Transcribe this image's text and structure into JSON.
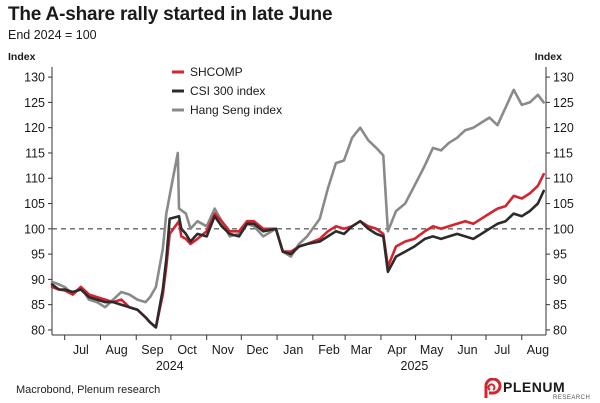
{
  "header": {
    "title": "The A-share rally started in late June",
    "subtitle": "End 2024 = 100"
  },
  "footer": {
    "source": "Macrobond, Plenum research",
    "logo_text": "PLENUM",
    "logo_sub": "RESEARCH"
  },
  "colors": {
    "SHCOMP": "#d7232e",
    "CSI 300 index": "#2b2b2b",
    "Hang Seng index": "#8a8a8a",
    "reference_line": "#666666"
  },
  "chart_data": {
    "type": "line",
    "title": "The A-share rally started in late June",
    "subtitle": "End 2024 = 100",
    "ylabel_left": "Index",
    "ylabel_right": "Index",
    "ylim": [
      79,
      132
    ],
    "yticks": [
      80,
      85,
      90,
      95,
      100,
      105,
      110,
      115,
      120,
      125,
      130
    ],
    "xlim": [
      "2024-06-20",
      "2025-08-22"
    ],
    "xticks": [
      {
        "label": "Jul",
        "date": "2024-07-15"
      },
      {
        "label": "Aug",
        "date": "2024-08-15"
      },
      {
        "label": "Sep",
        "date": "2024-09-15"
      },
      {
        "label": "Oct",
        "date": "2024-10-15"
      },
      {
        "label": "Nov",
        "date": "2024-11-15"
      },
      {
        "label": "Dec",
        "date": "2024-12-15"
      },
      {
        "label": "Jan",
        "date": "2025-01-15"
      },
      {
        "label": "Feb",
        "date": "2025-02-15"
      },
      {
        "label": "Mar",
        "date": "2025-03-15"
      },
      {
        "label": "Apr",
        "date": "2025-04-15"
      },
      {
        "label": "May",
        "date": "2025-05-15"
      },
      {
        "label": "Jun",
        "date": "2025-06-15"
      },
      {
        "label": "Jul",
        "date": "2025-07-15"
      },
      {
        "label": "Aug",
        "date": "2025-08-15"
      }
    ],
    "year_labels": [
      {
        "label": "2024",
        "date": "2024-09-30"
      },
      {
        "label": "2025",
        "date": "2025-04-30"
      }
    ],
    "reference_line": 100,
    "grid": false,
    "legend": "top-left",
    "series": [
      {
        "name": "SHCOMP",
        "x": [
          "2024-06-20",
          "2024-06-26",
          "2024-07-01",
          "2024-07-08",
          "2024-07-15",
          "2024-07-22",
          "2024-07-29",
          "2024-08-05",
          "2024-08-12",
          "2024-08-19",
          "2024-08-26",
          "2024-09-02",
          "2024-09-09",
          "2024-09-13",
          "2024-09-18",
          "2024-09-24",
          "2024-09-27",
          "2024-09-30",
          "2024-10-08",
          "2024-10-10",
          "2024-10-14",
          "2024-10-18",
          "2024-10-24",
          "2024-11-01",
          "2024-11-08",
          "2024-11-14",
          "2024-11-21",
          "2024-11-29",
          "2024-12-06",
          "2024-12-12",
          "2024-12-20",
          "2024-12-31",
          "2025-01-06",
          "2025-01-13",
          "2025-01-20",
          "2025-01-27",
          "2025-02-07",
          "2025-02-14",
          "2025-02-21",
          "2025-02-28",
          "2025-03-07",
          "2025-03-14",
          "2025-03-21",
          "2025-03-28",
          "2025-04-03",
          "2025-04-07",
          "2025-04-14",
          "2025-04-22",
          "2025-04-30",
          "2025-05-09",
          "2025-05-16",
          "2025-05-23",
          "2025-05-30",
          "2025-06-06",
          "2025-06-13",
          "2025-06-20",
          "2025-06-27",
          "2025-07-04",
          "2025-07-11",
          "2025-07-18",
          "2025-07-25",
          "2025-08-01",
          "2025-08-08",
          "2025-08-15",
          "2025-08-20"
        ],
        "y": [
          88.5,
          88.0,
          87.8,
          87.0,
          88.5,
          87.0,
          86.5,
          86.0,
          85.5,
          86.0,
          84.5,
          84.0,
          82.5,
          81.5,
          80.5,
          87.0,
          92.5,
          99.0,
          101.5,
          98.5,
          98.0,
          97.0,
          98.0,
          99.5,
          103.0,
          101.5,
          99.5,
          99.5,
          101.5,
          101.5,
          100.0,
          100.0,
          95.5,
          95.5,
          96.5,
          97.0,
          98.0,
          99.5,
          100.5,
          100.0,
          100.5,
          101.5,
          100.5,
          100.0,
          99.0,
          92.5,
          96.5,
          97.5,
          98.0,
          99.5,
          100.5,
          100.0,
          100.5,
          101.0,
          101.5,
          101.0,
          102.0,
          103.0,
          104.0,
          104.5,
          106.5,
          106.0,
          107.0,
          108.5,
          110.8
        ]
      },
      {
        "name": "CSI 300 index",
        "x": [
          "2024-06-20",
          "2024-06-26",
          "2024-07-01",
          "2024-07-08",
          "2024-07-15",
          "2024-07-22",
          "2024-07-29",
          "2024-08-05",
          "2024-08-12",
          "2024-08-19",
          "2024-08-26",
          "2024-09-02",
          "2024-09-09",
          "2024-09-13",
          "2024-09-18",
          "2024-09-24",
          "2024-09-27",
          "2024-09-30",
          "2024-10-08",
          "2024-10-10",
          "2024-10-14",
          "2024-10-18",
          "2024-10-24",
          "2024-11-01",
          "2024-11-08",
          "2024-11-14",
          "2024-11-21",
          "2024-11-29",
          "2024-12-06",
          "2024-12-12",
          "2024-12-20",
          "2024-12-31",
          "2025-01-06",
          "2025-01-13",
          "2025-01-20",
          "2025-01-27",
          "2025-02-07",
          "2025-02-14",
          "2025-02-21",
          "2025-02-28",
          "2025-03-07",
          "2025-03-14",
          "2025-03-21",
          "2025-03-28",
          "2025-04-03",
          "2025-04-07",
          "2025-04-14",
          "2025-04-22",
          "2025-04-30",
          "2025-05-09",
          "2025-05-16",
          "2025-05-23",
          "2025-05-30",
          "2025-06-06",
          "2025-06-13",
          "2025-06-20",
          "2025-06-27",
          "2025-07-04",
          "2025-07-11",
          "2025-07-18",
          "2025-07-25",
          "2025-08-01",
          "2025-08-08",
          "2025-08-15",
          "2025-08-20"
        ],
        "y": [
          89.0,
          88.0,
          88.0,
          87.5,
          88.0,
          86.5,
          86.0,
          85.5,
          85.5,
          85.0,
          84.5,
          84.0,
          82.5,
          81.5,
          80.5,
          88.0,
          94.0,
          102.0,
          102.5,
          100.0,
          99.0,
          97.5,
          99.0,
          98.5,
          102.5,
          100.5,
          99.0,
          98.5,
          101.0,
          101.0,
          99.5,
          100.0,
          95.5,
          95.0,
          96.5,
          97.0,
          97.5,
          98.5,
          99.5,
          99.0,
          100.5,
          101.5,
          100.0,
          99.0,
          98.5,
          91.5,
          94.5,
          95.5,
          96.5,
          98.0,
          98.5,
          98.0,
          98.5,
          99.0,
          98.5,
          98.0,
          99.0,
          100.0,
          101.0,
          101.5,
          103.0,
          102.5,
          103.5,
          105.0,
          107.5
        ]
      },
      {
        "name": "Hang Seng index",
        "x": [
          "2024-06-20",
          "2024-06-26",
          "2024-07-01",
          "2024-07-08",
          "2024-07-15",
          "2024-07-22",
          "2024-07-29",
          "2024-08-05",
          "2024-08-12",
          "2024-08-19",
          "2024-08-26",
          "2024-09-02",
          "2024-09-09",
          "2024-09-13",
          "2024-09-18",
          "2024-09-24",
          "2024-09-27",
          "2024-10-02",
          "2024-10-07",
          "2024-10-08",
          "2024-10-14",
          "2024-10-18",
          "2024-10-24",
          "2024-11-01",
          "2024-11-08",
          "2024-11-14",
          "2024-11-21",
          "2024-11-29",
          "2024-12-06",
          "2024-12-12",
          "2024-12-20",
          "2024-12-31",
          "2025-01-06",
          "2025-01-13",
          "2025-01-20",
          "2025-01-27",
          "2025-02-07",
          "2025-02-14",
          "2025-02-21",
          "2025-02-28",
          "2025-03-07",
          "2025-03-14",
          "2025-03-21",
          "2025-03-28",
          "2025-04-03",
          "2025-04-07",
          "2025-04-14",
          "2025-04-22",
          "2025-04-30",
          "2025-05-09",
          "2025-05-16",
          "2025-05-23",
          "2025-05-30",
          "2025-06-06",
          "2025-06-13",
          "2025-06-20",
          "2025-06-27",
          "2025-07-04",
          "2025-07-11",
          "2025-07-18",
          "2025-07-25",
          "2025-08-01",
          "2025-08-08",
          "2025-08-15",
          "2025-08-20"
        ],
        "y": [
          89.5,
          89.0,
          88.5,
          87.0,
          88.5,
          86.0,
          85.5,
          84.5,
          86.0,
          87.5,
          87.0,
          86.0,
          85.5,
          86.5,
          88.5,
          96.0,
          103.0,
          109.0,
          115.0,
          104.0,
          103.0,
          100.0,
          101.5,
          100.5,
          104.0,
          101.5,
          98.5,
          99.0,
          101.0,
          100.5,
          98.5,
          100.0,
          95.5,
          94.5,
          97.0,
          98.5,
          102.0,
          108.0,
          113.0,
          113.5,
          118.0,
          120.0,
          117.5,
          116.0,
          114.5,
          99.5,
          103.5,
          105.0,
          108.5,
          112.5,
          116.0,
          115.5,
          117.0,
          118.0,
          119.5,
          120.0,
          121.0,
          122.0,
          120.5,
          124.0,
          127.5,
          124.5,
          125.0,
          126.5,
          125.0
        ]
      }
    ]
  }
}
